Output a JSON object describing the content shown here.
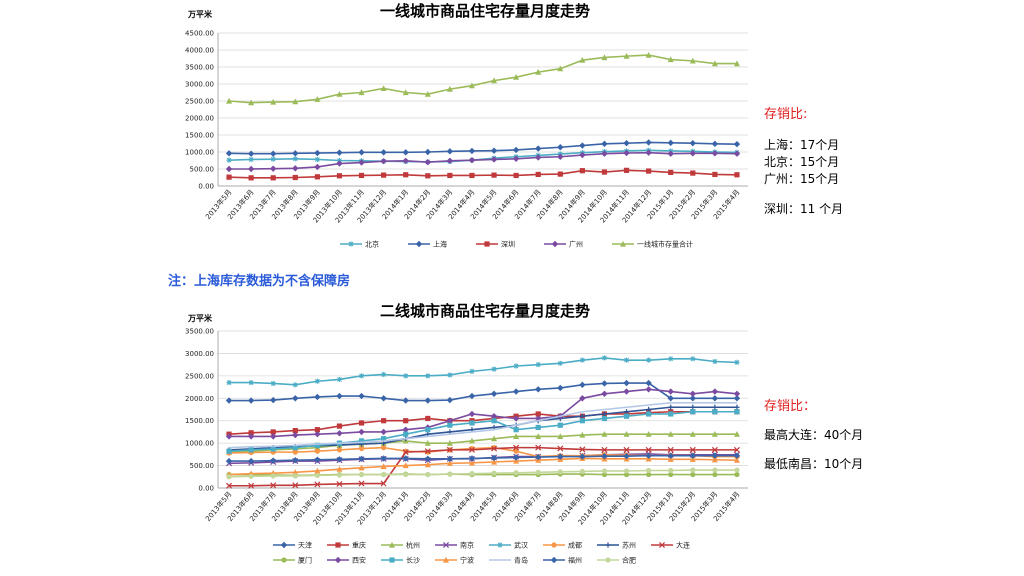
{
  "note": "注：上海库存数据为不含保障房",
  "side1": {
    "heading": "存销比:",
    "lines": [
      "上海：17个月",
      "北京：15个月",
      "广州：15个月"
    ],
    "extra": "深圳：11 个月"
  },
  "side2": {
    "heading": "存销比：",
    "lines": [
      "最高大连：40个月"
    ],
    "extra": "最低南昌：10个月"
  },
  "chart_data": [
    {
      "type": "line",
      "title": "一线城市商品住宅存量月度走势",
      "unit": "万平米",
      "ylim": [
        0,
        4500
      ],
      "yticks": [
        "0.00",
        "500.00",
        "1000.00",
        "1500.00",
        "2000.00",
        "2500.00",
        "3000.00",
        "3500.00",
        "4000.00",
        "4500.00"
      ],
      "categories": [
        "2013年5月",
        "2013年6月",
        "2013年7月",
        "2013年8月",
        "2013年9月",
        "2013年10月",
        "2013年11月",
        "2013年12月",
        "2014年1月",
        "2014年2月",
        "2014年3月",
        "2014年4月",
        "2014年5月",
        "2014年6月",
        "2014年7月",
        "2014年8月",
        "2014年9月",
        "2014年10月",
        "2014年11月",
        "2014年12月",
        "2015年1月",
        "2015年2月",
        "2015年3月",
        "2015年4月"
      ],
      "legend_position": "bottom",
      "series": [
        {
          "name": "北京",
          "color": "#4bacc6",
          "marker": "star",
          "values": [
            760,
            780,
            790,
            800,
            780,
            750,
            740,
            730,
            720,
            710,
            720,
            760,
            820,
            860,
            900,
            940,
            980,
            1010,
            1030,
            1050,
            1030,
            1020,
            1000,
            990
          ]
        },
        {
          "name": "上海",
          "color": "#3a64a8",
          "marker": "diamond",
          "values": [
            960,
            950,
            950,
            960,
            970,
            980,
            990,
            990,
            990,
            1000,
            1020,
            1030,
            1040,
            1060,
            1100,
            1140,
            1190,
            1240,
            1260,
            1280,
            1270,
            1260,
            1240,
            1230
          ]
        },
        {
          "name": "深圳",
          "color": "#c0393b",
          "marker": "square",
          "values": [
            260,
            240,
            240,
            250,
            270,
            300,
            310,
            320,
            330,
            300,
            310,
            310,
            320,
            310,
            340,
            350,
            450,
            410,
            460,
            440,
            400,
            380,
            340,
            330
          ]
        },
        {
          "name": "广州",
          "color": "#7a4ba0",
          "marker": "diamond",
          "values": [
            500,
            500,
            510,
            520,
            560,
            660,
            690,
            730,
            740,
            700,
            740,
            760,
            780,
            800,
            840,
            860,
            910,
            950,
            970,
            980,
            950,
            960,
            960,
            950
          ]
        },
        {
          "name": "一线城市存量合计",
          "color": "#9bbb59",
          "marker": "triangle",
          "values": [
            2500,
            2450,
            2470,
            2480,
            2550,
            2700,
            2750,
            2870,
            2750,
            2700,
            2850,
            2950,
            3100,
            3200,
            3350,
            3450,
            3700,
            3780,
            3820,
            3850,
            3720,
            3680,
            3600,
            3600
          ]
        }
      ]
    },
    {
      "type": "line",
      "title": "二线城市商品住宅存量月度走势",
      "unit": "万平米",
      "ylim": [
        0,
        3500
      ],
      "yticks": [
        "0.00",
        "500.00",
        "1000.00",
        "1500.00",
        "2000.00",
        "2500.00",
        "3000.00",
        "3500.00"
      ],
      "categories": [
        "2013年5月",
        "2013年6月",
        "2013年7月",
        "2013年8月",
        "2013年9月",
        "2013年10月",
        "2013年11月",
        "2013年12月",
        "2014年1月",
        "2014年2月",
        "2014年3月",
        "2014年4月",
        "2014年5月",
        "2014年6月",
        "2014年7月",
        "2014年8月",
        "2014年9月",
        "2014年10月",
        "2014年11月",
        "2014年12月",
        "2015年1月",
        "2015年2月",
        "2015年3月",
        "2015年4月"
      ],
      "legend_position": "bottom",
      "series": [
        {
          "name": "天津",
          "color": "#3a64a8",
          "marker": "diamond",
          "values": [
            1950,
            1950,
            1960,
            2000,
            2030,
            2050,
            2050,
            2000,
            1950,
            1950,
            1960,
            2050,
            2100,
            2150,
            2200,
            2230,
            2300,
            2330,
            2340,
            2340,
            2000,
            2000,
            2000,
            2000
          ]
        },
        {
          "name": "重庆",
          "color": "#c0393b",
          "marker": "square",
          "values": [
            1200,
            1230,
            1250,
            1280,
            1300,
            1380,
            1450,
            1500,
            1500,
            1550,
            1500,
            1500,
            1550,
            1600,
            1650,
            1600,
            1600,
            1650,
            1650,
            1680,
            1700,
            1700,
            1700,
            1700
          ]
        },
        {
          "name": "杭州",
          "color": "#9bbb59",
          "marker": "triangle",
          "values": [
            800,
            820,
            850,
            870,
            900,
            950,
            980,
            1000,
            1050,
            1000,
            1000,
            1050,
            1100,
            1150,
            1150,
            1150,
            1180,
            1200,
            1200,
            1200,
            1200,
            1200,
            1200,
            1200
          ]
        },
        {
          "name": "南京",
          "color": "#7a4ba0",
          "marker": "x",
          "values": [
            550,
            560,
            580,
            600,
            600,
            620,
            640,
            650,
            650,
            620,
            650,
            650,
            680,
            700,
            700,
            700,
            720,
            740,
            750,
            760,
            740,
            740,
            740,
            740
          ]
        },
        {
          "name": "武汉",
          "color": "#4bacc6",
          "marker": "star",
          "values": [
            2350,
            2350,
            2330,
            2300,
            2380,
            2420,
            2500,
            2530,
            2500,
            2500,
            2520,
            2600,
            2650,
            2720,
            2750,
            2780,
            2850,
            2900,
            2850,
            2850,
            2880,
            2880,
            2820,
            2800
          ]
        },
        {
          "name": "成都",
          "color": "#f79646",
          "marker": "circle",
          "values": [
            780,
            790,
            800,
            800,
            820,
            850,
            880,
            900,
            820,
            800,
            850,
            880,
            900,
            820,
            700,
            720,
            720,
            740,
            730,
            720,
            730,
            720,
            700,
            700
          ]
        },
        {
          "name": "苏州",
          "color": "#2f5496",
          "marker": "plus",
          "values": [
            850,
            870,
            900,
            920,
            940,
            960,
            980,
            1000,
            1100,
            1200,
            1250,
            1300,
            1350,
            1400,
            1500,
            1550,
            1600,
            1650,
            1700,
            1750,
            1800,
            1800,
            1800,
            1800
          ]
        },
        {
          "name": "大连",
          "color": "#c0393b",
          "marker": "x",
          "values": [
            50,
            50,
            60,
            60,
            80,
            90,
            100,
            100,
            800,
            820,
            850,
            850,
            880,
            900,
            900,
            880,
            860,
            850,
            850,
            850,
            850,
            850,
            850,
            850
          ]
        },
        {
          "name": "厦门",
          "color": "#9bbb59",
          "marker": "circle",
          "values": [
            300,
            300,
            290,
            280,
            290,
            300,
            300,
            300,
            310,
            300,
            310,
            300,
            300,
            300,
            300,
            310,
            310,
            300,
            300,
            300,
            300,
            300,
            300,
            300
          ]
        },
        {
          "name": "西安",
          "color": "#7a4ba0",
          "marker": "diamond",
          "values": [
            1150,
            1150,
            1150,
            1180,
            1200,
            1220,
            1250,
            1250,
            1300,
            1350,
            1500,
            1650,
            1600,
            1550,
            1550,
            1600,
            2000,
            2100,
            2150,
            2200,
            2150,
            2100,
            2150,
            2100
          ]
        },
        {
          "name": "长沙",
          "color": "#4bacc6",
          "marker": "square",
          "values": [
            820,
            850,
            870,
            900,
            950,
            1000,
            1050,
            1100,
            1200,
            1300,
            1400,
            1450,
            1500,
            1300,
            1350,
            1400,
            1500,
            1550,
            1600,
            1650,
            1650,
            1700,
            1700,
            1700
          ]
        },
        {
          "name": "宁波",
          "color": "#f79646",
          "marker": "triangle",
          "values": [
            300,
            320,
            330,
            350,
            380,
            420,
            450,
            480,
            500,
            520,
            550,
            560,
            580,
            600,
            620,
            640,
            660,
            650,
            650,
            650,
            640,
            640,
            630,
            620
          ]
        },
        {
          "name": "青岛",
          "color": "#b4c7e7",
          "marker": "none",
          "values": [
            900,
            920,
            930,
            950,
            980,
            1000,
            1020,
            1050,
            1100,
            1150,
            1200,
            1250,
            1300,
            1400,
            1500,
            1600,
            1700,
            1750,
            1800,
            1850,
            1900,
            1900,
            1900,
            1900
          ]
        },
        {
          "name": "福州",
          "color": "#3a64a8",
          "marker": "diamond",
          "values": [
            600,
            600,
            610,
            620,
            630,
            640,
            650,
            660,
            660,
            650,
            650,
            660,
            670,
            680,
            690,
            700,
            700,
            710,
            710,
            720,
            720,
            720,
            720,
            720
          ]
        },
        {
          "name": "合肥",
          "color": "#c4d79b",
          "marker": "circle",
          "values": [
            250,
            260,
            270,
            270,
            280,
            290,
            300,
            300,
            300,
            300,
            310,
            320,
            330,
            340,
            350,
            360,
            370,
            380,
            380,
            390,
            390,
            400,
            400,
            400
          ]
        }
      ]
    }
  ]
}
